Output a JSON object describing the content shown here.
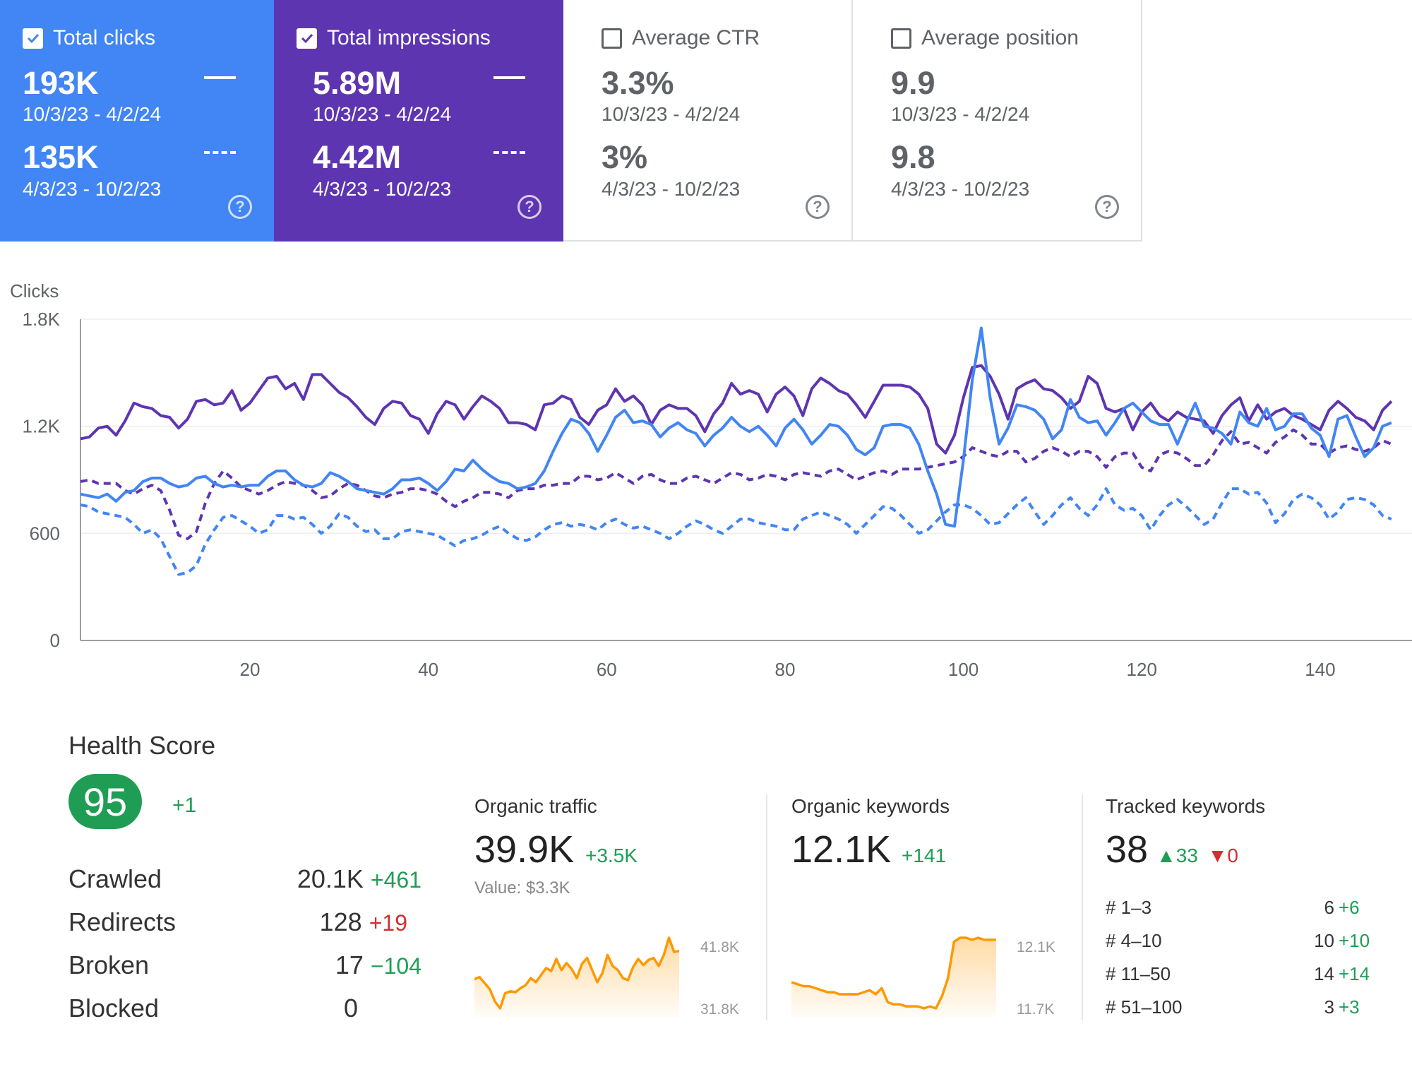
{
  "metrics": [
    {
      "label": "Total clicks",
      "checked": true,
      "primary": "193K",
      "primary_dates": "10/3/23 - 4/2/24",
      "secondary": "135K",
      "secondary_dates": "4/3/23 - 10/2/23",
      "color": "#4285f4"
    },
    {
      "label": "Total impressions",
      "checked": true,
      "primary": "5.89M",
      "primary_dates": "10/3/23 - 4/2/24",
      "secondary": "4.42M",
      "secondary_dates": "4/3/23 - 10/2/23",
      "color": "#5e35b1"
    },
    {
      "label": "Average CTR",
      "checked": false,
      "primary": "3.3%",
      "primary_dates": "10/3/23 - 4/2/24",
      "secondary": "3%",
      "secondary_dates": "4/3/23 - 10/2/23"
    },
    {
      "label": "Average position",
      "checked": false,
      "primary": "9.9",
      "primary_dates": "10/3/23 - 4/2/24",
      "secondary": "9.8",
      "secondary_dates": "4/3/23 - 10/2/23"
    }
  ],
  "icons": {
    "checkbox": "checkbox-icon",
    "help": "help-icon",
    "help_glyph": "?",
    "arrow_up": "arrow-up-icon",
    "arrow_down": "arrow-down-icon"
  },
  "chart_data": {
    "type": "line",
    "ylabel": "Clicks",
    "ylim": [
      0,
      1800
    ],
    "yticks": [
      0,
      600,
      1200,
      1800
    ],
    "ytick_labels": [
      "0",
      "600",
      "1.2K",
      "1.8K"
    ],
    "xlim": [
      1,
      148
    ],
    "xticks": [
      20,
      40,
      60,
      80,
      100,
      120,
      140
    ],
    "grid": true,
    "series": [
      {
        "style": "solid",
        "color": "#5e35b1",
        "values": [
          1130,
          1140,
          1190,
          1200,
          1150,
          1230,
          1330,
          1310,
          1300,
          1260,
          1250,
          1190,
          1240,
          1340,
          1350,
          1320,
          1330,
          1400,
          1290,
          1330,
          1400,
          1470,
          1480,
          1410,
          1440,
          1350,
          1490,
          1490,
          1440,
          1390,
          1360,
          1310,
          1250,
          1210,
          1300,
          1340,
          1330,
          1260,
          1240,
          1160,
          1270,
          1340,
          1320,
          1240,
          1310,
          1370,
          1340,
          1300,
          1220,
          1220,
          1210,
          1180,
          1320,
          1330,
          1370,
          1350,
          1250,
          1210,
          1290,
          1320,
          1410,
          1340,
          1370,
          1320,
          1210,
          1290,
          1320,
          1300,
          1300,
          1260,
          1170,
          1270,
          1330,
          1440,
          1380,
          1400,
          1380,
          1280,
          1380,
          1420,
          1370,
          1260,
          1410,
          1470,
          1440,
          1400,
          1380,
          1320,
          1250,
          1340,
          1430,
          1430,
          1430,
          1420,
          1380,
          1300,
          1100,
          1050,
          1150,
          1360,
          1530,
          1540,
          1480,
          1380,
          1240,
          1410,
          1440,
          1460,
          1410,
          1400,
          1360,
          1300,
          1340,
          1480,
          1440,
          1300,
          1280,
          1300,
          1180,
          1280,
          1330,
          1260,
          1230,
          1280,
          1250,
          1240,
          1230,
          1160,
          1260,
          1320,
          1360,
          1230,
          1320,
          1240,
          1280,
          1300,
          1260,
          1240,
          1210,
          1180,
          1290,
          1340,
          1300,
          1250,
          1230,
          1180,
          1290,
          1340
        ]
      },
      {
        "style": "solid",
        "color": "#4285f4",
        "values": [
          820,
          810,
          800,
          820,
          780,
          830,
          840,
          890,
          910,
          910,
          880,
          860,
          870,
          910,
          920,
          880,
          860,
          870,
          860,
          870,
          870,
          920,
          950,
          950,
          900,
          870,
          860,
          880,
          940,
          920,
          890,
          850,
          840,
          830,
          820,
          850,
          900,
          900,
          910,
          880,
          840,
          890,
          960,
          950,
          1010,
          960,
          920,
          890,
          880,
          850,
          860,
          880,
          950,
          1060,
          1160,
          1240,
          1220,
          1160,
          1060,
          1150,
          1250,
          1290,
          1220,
          1230,
          1210,
          1140,
          1190,
          1220,
          1180,
          1160,
          1090,
          1150,
          1190,
          1250,
          1200,
          1170,
          1200,
          1150,
          1090,
          1190,
          1240,
          1180,
          1100,
          1150,
          1210,
          1200,
          1150,
          1070,
          1040,
          1080,
          1200,
          1210,
          1210,
          1190,
          1100,
          950,
          820,
          650,
          640,
          1010,
          1460,
          1750,
          1360,
          1100,
          1190,
          1320,
          1310,
          1290,
          1240,
          1130,
          1180,
          1350,
          1250,
          1220,
          1230,
          1150,
          1220,
          1300,
          1330,
          1280,
          1230,
          1210,
          1210,
          1100,
          1220,
          1330,
          1200,
          1190,
          1160,
          1100,
          1280,
          1220,
          1200,
          1300,
          1180,
          1200,
          1270,
          1270,
          1190,
          1150,
          1030,
          1240,
          1260,
          1140,
          1030,
          1080,
          1200,
          1220
        ]
      },
      {
        "style": "dashed",
        "color": "#5e35b1",
        "values": [
          890,
          900,
          880,
          880,
          880,
          840,
          820,
          850,
          870,
          840,
          730,
          590,
          570,
          610,
          770,
          880,
          950,
          910,
          860,
          840,
          820,
          840,
          870,
          890,
          880,
          870,
          840,
          800,
          810,
          850,
          880,
          870,
          840,
          810,
          800,
          820,
          830,
          850,
          850,
          840,
          820,
          780,
          750,
          780,
          800,
          830,
          830,
          820,
          800,
          840,
          850,
          850,
          870,
          870,
          880,
          880,
          920,
          920,
          900,
          910,
          940,
          910,
          880,
          920,
          930,
          900,
          880,
          880,
          910,
          920,
          900,
          880,
          910,
          940,
          930,
          900,
          910,
          930,
          920,
          900,
          930,
          940,
          930,
          920,
          950,
          960,
          930,
          900,
          920,
          940,
          950,
          930,
          960,
          960,
          960,
          970,
          980,
          990,
          1000,
          1030,
          1080,
          1060,
          1040,
          1030,
          1060,
          1060,
          1000,
          1020,
          1060,
          1080,
          1060,
          1030,
          1060,
          1060,
          1030,
          970,
          1030,
          1050,
          1050,
          970,
          950,
          1040,
          1060,
          1050,
          1020,
          980,
          980,
          1040,
          1120,
          1170,
          1100,
          1110,
          1080,
          1050,
          1110,
          1140,
          1180,
          1150,
          1100,
          1100,
          1050,
          1080,
          1090,
          1070,
          1060,
          1080,
          1120,
          1100
        ]
      },
      {
        "style": "dashed",
        "color": "#4285f4",
        "values": [
          760,
          750,
          720,
          710,
          700,
          690,
          650,
          600,
          620,
          570,
          470,
          370,
          380,
          420,
          540,
          620,
          690,
          700,
          670,
          640,
          600,
          620,
          700,
          700,
          680,
          690,
          650,
          600,
          640,
          710,
          690,
          640,
          610,
          620,
          570,
          570,
          610,
          620,
          610,
          600,
          590,
          560,
          530,
          560,
          570,
          590,
          620,
          640,
          600,
          570,
          560,
          580,
          620,
          650,
          660,
          640,
          650,
          640,
          620,
          660,
          680,
          650,
          630,
          640,
          620,
          600,
          570,
          600,
          640,
          670,
          650,
          620,
          600,
          640,
          680,
          680,
          660,
          650,
          640,
          620,
          620,
          680,
          700,
          720,
          700,
          680,
          650,
          600,
          650,
          700,
          750,
          740,
          700,
          650,
          600,
          620,
          670,
          720,
          760,
          760,
          740,
          700,
          650,
          660,
          710,
          760,
          800,
          720,
          650,
          700,
          760,
          800,
          740,
          700,
          760,
          850,
          760,
          730,
          740,
          700,
          620,
          700,
          760,
          790,
          750,
          700,
          650,
          680,
          770,
          850,
          850,
          820,
          830,
          770,
          660,
          710,
          790,
          820,
          800,
          760,
          680,
          720,
          790,
          800,
          790,
          760,
          700,
          680
        ]
      }
    ]
  },
  "health": {
    "title": "Health Score",
    "score": "95",
    "delta": "+1",
    "rows": [
      {
        "label": "Crawled",
        "value": "20.1K",
        "delta": "+461",
        "color": "#1f9d55"
      },
      {
        "label": "Redirects",
        "value": "128",
        "delta": "+19",
        "color": "#d32f2f"
      },
      {
        "label": "Broken",
        "value": "17",
        "delta": "−104",
        "color": "#1f9d55"
      },
      {
        "label": "Blocked",
        "value": "0",
        "delta": "",
        "color": "#1f9d55"
      }
    ]
  },
  "organic_traffic": {
    "title": "Organic traffic",
    "value": "39.9K",
    "delta": "+3.5K",
    "sub": "Value: $3.3K",
    "spark_max": "41.8K",
    "spark_min": "31.8K",
    "spark": [
      35.2,
      35.4,
      34.8,
      34.2,
      33.0,
      32.3,
      33.8,
      34.0,
      33.9,
      34.3,
      34.6,
      35.3,
      34.9,
      35.6,
      36.3,
      36.0,
      37.2,
      36.1,
      36.8,
      36.2,
      35.3,
      36.7,
      37.3,
      36.1,
      34.9,
      35.8,
      37.6,
      36.5,
      36.1,
      35.3,
      35.1,
      36.4,
      37.2,
      36.6,
      37.1,
      37.3,
      36.5,
      37.6,
      39.3,
      37.9,
      38.0
    ]
  },
  "organic_keywords": {
    "title": "Organic keywords",
    "value": "12.1K",
    "delta": "+141",
    "spark_max": "12.1K",
    "spark_min": "11.7K",
    "spark": [
      11.87,
      11.86,
      11.85,
      11.85,
      11.84,
      11.83,
      11.82,
      11.82,
      11.81,
      11.81,
      11.81,
      11.81,
      11.82,
      11.83,
      11.81,
      11.84,
      11.77,
      11.76,
      11.76,
      11.75,
      11.75,
      11.75,
      11.74,
      11.75,
      11.74,
      11.8,
      11.89,
      12.07,
      12.09,
      12.09,
      12.08,
      12.09,
      12.08,
      12.08,
      12.08
    ]
  },
  "tracked_keywords": {
    "title": "Tracked keywords",
    "value": "38",
    "up": "33",
    "down": "0",
    "rows": [
      {
        "label": "# 1–3",
        "value": "6",
        "delta": "+6"
      },
      {
        "label": "# 4–10",
        "value": "10",
        "delta": "+10"
      },
      {
        "label": "# 11–50",
        "value": "14",
        "delta": "+14"
      },
      {
        "label": "# 51–100",
        "value": "3",
        "delta": "+3"
      }
    ]
  },
  "colors": {
    "spark_orange": "#ff9800",
    "positive": "#1f9d55",
    "negative": "#d32f2f"
  }
}
